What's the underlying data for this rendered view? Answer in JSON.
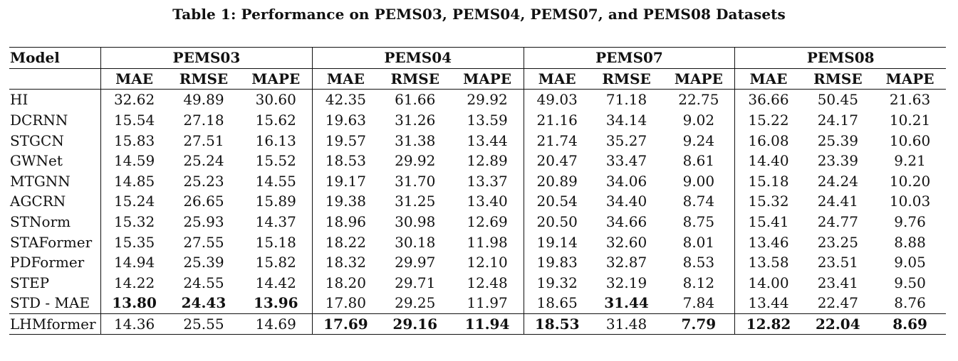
{
  "caption": "Table 1: Performance on PEMS03, PEMS04, PEMS07, and PEMS08 Datasets",
  "header": {
    "model": "Model",
    "datasets": [
      "PEMS03",
      "PEMS04",
      "PEMS07",
      "PEMS08"
    ],
    "metrics": [
      "MAE",
      "RMSE",
      "MAPE"
    ]
  },
  "rows": [
    {
      "model": "HI",
      "values": [
        "32.62",
        "49.89",
        "30.60",
        "42.35",
        "61.66",
        "29.92",
        "49.03",
        "71.18",
        "22.75",
        "36.66",
        "50.45",
        "21.63"
      ],
      "bold": []
    },
    {
      "model": "DCRNN",
      "values": [
        "15.54",
        "27.18",
        "15.62",
        "19.63",
        "31.26",
        "13.59",
        "21.16",
        "34.14",
        "9.02",
        "15.22",
        "24.17",
        "10.21"
      ],
      "bold": []
    },
    {
      "model": "STGCN",
      "values": [
        "15.83",
        "27.51",
        "16.13",
        "19.57",
        "31.38",
        "13.44",
        "21.74",
        "35.27",
        "9.24",
        "16.08",
        "25.39",
        "10.60"
      ],
      "bold": []
    },
    {
      "model": "GWNet",
      "values": [
        "14.59",
        "25.24",
        "15.52",
        "18.53",
        "29.92",
        "12.89",
        "20.47",
        "33.47",
        "8.61",
        "14.40",
        "23.39",
        "9.21"
      ],
      "bold": []
    },
    {
      "model": "MTGNN",
      "values": [
        "14.85",
        "25.23",
        "14.55",
        "19.17",
        "31.70",
        "13.37",
        "20.89",
        "34.06",
        "9.00",
        "15.18",
        "24.24",
        "10.20"
      ],
      "bold": []
    },
    {
      "model": "AGCRN",
      "values": [
        "15.24",
        "26.65",
        "15.89",
        "19.38",
        "31.25",
        "13.40",
        "20.54",
        "34.40",
        "8.74",
        "15.32",
        "24.41",
        "10.03"
      ],
      "bold": []
    },
    {
      "model": "STNorm",
      "values": [
        "15.32",
        "25.93",
        "14.37",
        "18.96",
        "30.98",
        "12.69",
        "20.50",
        "34.66",
        "8.75",
        "15.41",
        "24.77",
        "9.76"
      ],
      "bold": []
    },
    {
      "model": "STAFormer",
      "values": [
        "15.35",
        "27.55",
        "15.18",
        "18.22",
        "30.18",
        "11.98",
        "19.14",
        "32.60",
        "8.01",
        "13.46",
        "23.25",
        "8.88"
      ],
      "bold": []
    },
    {
      "model": "PDFormer",
      "values": [
        "14.94",
        "25.39",
        "15.82",
        "18.32",
        "29.97",
        "12.10",
        "19.83",
        "32.87",
        "8.53",
        "13.58",
        "23.51",
        "9.05"
      ],
      "bold": []
    },
    {
      "model": "STEP",
      "values": [
        "14.22",
        "24.55",
        "14.42",
        "18.20",
        "29.71",
        "12.48",
        "19.32",
        "32.19",
        "8.12",
        "14.00",
        "23.41",
        "9.50"
      ],
      "bold": []
    },
    {
      "model": "STD - MAE",
      "values": [
        "13.80",
        "24.43",
        "13.96",
        "17.80",
        "29.25",
        "11.97",
        "18.65",
        "31.44",
        "7.84",
        "13.44",
        "22.47",
        "8.76"
      ],
      "bold": [
        0,
        1,
        2,
        7
      ]
    },
    {
      "model": "LHMformer",
      "values": [
        "14.36",
        "25.55",
        "14.69",
        "17.69",
        "29.16",
        "11.94",
        "18.53",
        "31.48",
        "7.79",
        "12.82",
        "22.04",
        "8.69"
      ],
      "bold": [
        3,
        4,
        5,
        6,
        8,
        9,
        10,
        11
      ]
    }
  ]
}
